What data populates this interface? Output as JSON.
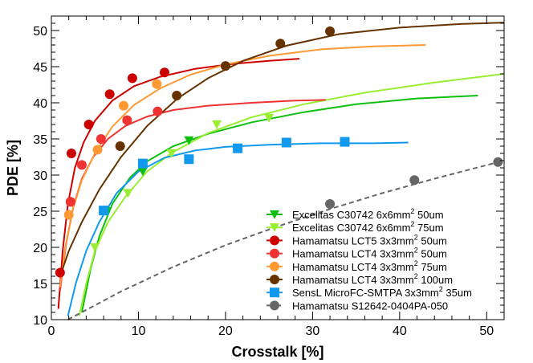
{
  "chart_data": {
    "type": "scatter",
    "title": "",
    "xlabel": "Crosstalk [%]",
    "ylabel": "PDE [%]",
    "xlim": [
      0,
      52
    ],
    "ylim": [
      10,
      52
    ],
    "x_ticks": [
      "0",
      "10",
      "20",
      "30",
      "40",
      "50"
    ],
    "y_ticks": [
      "10",
      "15",
      "20",
      "25",
      "30",
      "35",
      "40",
      "45",
      "50"
    ],
    "legend_position": "bottom-right",
    "series": [
      {
        "name": "Excelitas C30742 6x6mm",
        "sup": "2",
        "suffix": " 50um",
        "color": "#0fbf0f",
        "marker": "triangle-down",
        "line_style": "solid",
        "points": [
          [
            6.3,
            25.0
          ],
          [
            10.5,
            30.5
          ],
          [
            15.8,
            34.8
          ]
        ],
        "curve": [
          [
            3.5,
            11.0
          ],
          [
            4.5,
            17.0
          ],
          [
            5.5,
            21.5
          ],
          [
            7.0,
            26.0
          ],
          [
            9.0,
            29.6
          ],
          [
            11.0,
            31.9
          ],
          [
            14.0,
            34.0
          ],
          [
            18.0,
            35.7
          ],
          [
            23.0,
            37.3
          ],
          [
            29.0,
            38.7
          ],
          [
            35.0,
            39.8
          ],
          [
            42.0,
            40.6
          ],
          [
            49.0,
            41.0
          ]
        ]
      },
      {
        "name": "Excelitas C30742 6x6mm",
        "sup": "2",
        "suffix": " 75um",
        "color": "#99ee33",
        "marker": "triangle-down",
        "line_style": "solid",
        "points": [
          [
            5.0,
            20.0
          ],
          [
            8.8,
            27.5
          ],
          [
            13.8,
            33.0
          ],
          [
            19.0,
            37.0
          ],
          [
            25.0,
            37.9
          ]
        ],
        "curve": [
          [
            3.2,
            10.5
          ],
          [
            4.0,
            15.0
          ],
          [
            5.0,
            19.5
          ],
          [
            6.5,
            23.5
          ],
          [
            8.5,
            27.0
          ],
          [
            11.0,
            30.5
          ],
          [
            14.0,
            33.2
          ],
          [
            18.0,
            35.8
          ],
          [
            23.0,
            38.0
          ],
          [
            29.0,
            39.8
          ],
          [
            36.0,
            41.4
          ],
          [
            44.0,
            42.8
          ],
          [
            52.0,
            44.0
          ]
        ]
      },
      {
        "name": "Hamamatsu LCT5 3x3mm",
        "sup": "2",
        "suffix": " 50um",
        "color": "#cc0000",
        "marker": "circle",
        "line_style": "solid",
        "points": [
          [
            1.0,
            16.5
          ],
          [
            2.2,
            26.3
          ],
          [
            2.3,
            33.0
          ],
          [
            4.3,
            37.0
          ],
          [
            6.7,
            41.2
          ],
          [
            9.3,
            43.4
          ],
          [
            13.0,
            44.2
          ]
        ],
        "curve": [
          [
            0.8,
            11.5
          ],
          [
            1.3,
            19.5
          ],
          [
            1.9,
            26.0
          ],
          [
            2.7,
            31.0
          ],
          [
            3.7,
            34.5
          ],
          [
            5.0,
            37.5
          ],
          [
            7.0,
            40.3
          ],
          [
            9.5,
            42.3
          ],
          [
            12.5,
            43.6
          ],
          [
            16.5,
            44.7
          ],
          [
            21.0,
            45.4
          ],
          [
            25.0,
            45.8
          ],
          [
            28.5,
            46.1
          ]
        ]
      },
      {
        "name": "Hamamatsu LCT4 3x3mm",
        "sup": "2",
        "suffix": " 50um",
        "color": "#ee3333",
        "marker": "circle",
        "line_style": "solid",
        "points": [
          [
            2.2,
            26.3
          ],
          [
            3.5,
            31.4
          ],
          [
            5.7,
            35.0
          ],
          [
            8.7,
            37.6
          ],
          [
            12.2,
            38.8
          ]
        ],
        "curve": [
          [
            1.0,
            14.0
          ],
          [
            1.7,
            20.5
          ],
          [
            2.5,
            25.5
          ],
          [
            3.5,
            29.5
          ],
          [
            4.8,
            32.5
          ],
          [
            6.5,
            35.0
          ],
          [
            8.5,
            36.8
          ],
          [
            11.0,
            38.1
          ],
          [
            14.0,
            39.0
          ],
          [
            18.0,
            39.6
          ],
          [
            23.0,
            40.0
          ],
          [
            28.0,
            40.3
          ],
          [
            31.5,
            40.4
          ]
        ]
      },
      {
        "name": "Hamamatsu LCT4 3x3mm",
        "sup": "2",
        "suffix": " 75um",
        "color": "#ff9933",
        "marker": "circle",
        "line_style": "solid",
        "points": [
          [
            2.0,
            24.5
          ],
          [
            5.3,
            33.5
          ],
          [
            8.3,
            39.6
          ],
          [
            12.1,
            42.6
          ]
        ],
        "curve": [
          [
            1.0,
            14.5
          ],
          [
            1.6,
            20.0
          ],
          [
            2.4,
            25.0
          ],
          [
            3.5,
            29.3
          ],
          [
            5.0,
            33.0
          ],
          [
            7.0,
            36.7
          ],
          [
            9.5,
            39.7
          ],
          [
            12.5,
            42.0
          ],
          [
            16.0,
            43.9
          ],
          [
            20.0,
            45.3
          ],
          [
            25.0,
            46.5
          ],
          [
            31.0,
            47.4
          ],
          [
            37.0,
            47.8
          ],
          [
            43.0,
            48.0
          ]
        ]
      },
      {
        "name": "Hamamatsu LCT4 3x3mm",
        "sup": "2",
        "suffix": " 100um",
        "color": "#663300",
        "marker": "circle",
        "line_style": "solid",
        "points": [
          [
            7.9,
            34.0
          ],
          [
            14.4,
            41.0
          ],
          [
            20.0,
            45.1
          ],
          [
            26.3,
            48.2
          ],
          [
            32.0,
            49.9
          ]
        ],
        "curve": [
          [
            1.0,
            16.0
          ],
          [
            2.0,
            19.5
          ],
          [
            3.5,
            23.5
          ],
          [
            5.5,
            28.0
          ],
          [
            8.0,
            32.5
          ],
          [
            11.0,
            36.8
          ],
          [
            14.5,
            40.6
          ],
          [
            18.0,
            43.4
          ],
          [
            22.0,
            45.8
          ],
          [
            27.0,
            47.9
          ],
          [
            33.0,
            49.5
          ],
          [
            40.0,
            50.4
          ],
          [
            47.0,
            50.9
          ],
          [
            52.0,
            51.1
          ]
        ]
      },
      {
        "name": "SensL MicroFC-SMTPA 3x3mm",
        "sup": "2",
        "suffix": " 35um",
        "color": "#1199ee",
        "marker": "square",
        "line_style": "solid",
        "points": [
          [
            6.0,
            25.1
          ],
          [
            10.5,
            31.6
          ],
          [
            15.8,
            32.2
          ],
          [
            21.4,
            33.7
          ],
          [
            27.0,
            34.5
          ],
          [
            33.7,
            34.6
          ]
        ],
        "curve": [
          [
            1.9,
            10.5
          ],
          [
            2.8,
            15.0
          ],
          [
            4.0,
            19.5
          ],
          [
            5.5,
            23.5
          ],
          [
            7.5,
            27.5
          ],
          [
            10.0,
            30.5
          ],
          [
            13.0,
            32.4
          ],
          [
            16.5,
            33.4
          ],
          [
            20.0,
            33.9
          ],
          [
            25.0,
            34.2
          ],
          [
            31.0,
            34.4
          ],
          [
            37.0,
            34.4
          ],
          [
            41.0,
            34.5
          ]
        ]
      },
      {
        "name": "Hamamatsu S12642-0404PA-050",
        "sup": "",
        "suffix": "",
        "color": "#666666",
        "marker": "circle",
        "line_style": "dashed",
        "points": [
          [
            32.0,
            26.0
          ],
          [
            41.7,
            29.3
          ],
          [
            51.3,
            31.8
          ]
        ],
        "curve": [
          [
            1.9,
            10.0
          ],
          [
            8.0,
            13.9
          ],
          [
            14.0,
            17.3
          ],
          [
            20.0,
            20.3
          ],
          [
            26.0,
            22.9
          ],
          [
            32.0,
            25.3
          ],
          [
            38.0,
            27.5
          ],
          [
            44.0,
            29.5
          ],
          [
            52.0,
            32.0
          ]
        ]
      }
    ]
  }
}
